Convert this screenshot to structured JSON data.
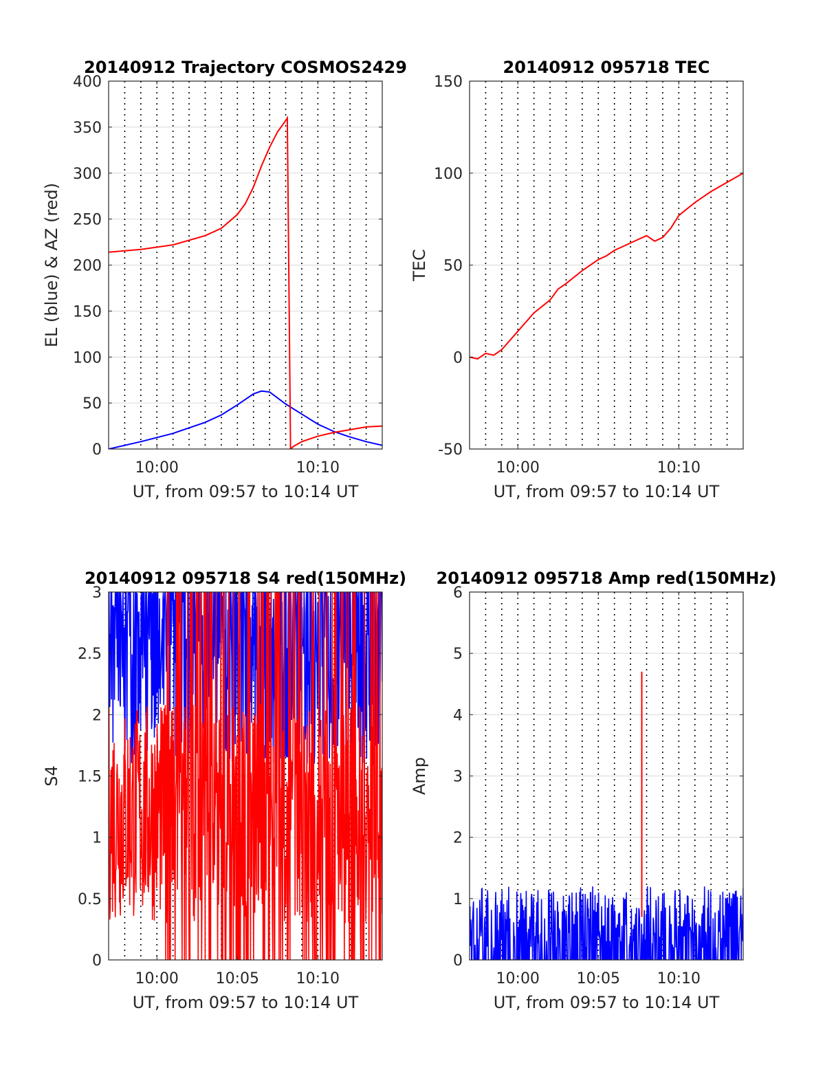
{
  "colors": {
    "el": "#0000ff",
    "az": "#ff0000",
    "s4": "#ff0000",
    "amp_red": "#ff0000",
    "amp_blue": "#0000ff",
    "grid": "#d9d9d9",
    "vgrid": "#000000"
  },
  "chart_data": [
    {
      "type": "line",
      "title": "20140912 Trajectory COSMOS2429",
      "xlabel": "UT, from 09:57 to 10:14 UT",
      "ylabel": "EL (blue) & AZ (red)",
      "xlim_min": [
        0,
        17
      ],
      "ylim": [
        0,
        400
      ],
      "xticks": [
        {
          "v": 3,
          "label": "10:00"
        },
        {
          "v": 13,
          "label": "10:10"
        }
      ],
      "yticks": [
        0,
        50,
        100,
        150,
        200,
        250,
        300,
        350,
        400
      ],
      "grid": true,
      "series": [
        {
          "key": "el",
          "x": [
            0,
            2,
            4,
            6,
            7,
            8,
            9,
            9.5,
            10,
            11,
            12,
            13,
            14,
            15,
            16,
            17
          ],
          "y": [
            0,
            8,
            17,
            29,
            37,
            48,
            60,
            63,
            62,
            49,
            38,
            27,
            19,
            13,
            8,
            4
          ]
        },
        {
          "key": "az",
          "x": [
            0,
            2,
            4,
            6,
            7,
            8,
            8.5,
            9,
            9.5,
            10,
            10.5,
            11,
            11.1,
            11.3,
            11.5,
            12,
            13,
            14,
            15,
            16,
            17
          ],
          "y": [
            214,
            217,
            222,
            232,
            240,
            255,
            267,
            285,
            308,
            328,
            345,
            357,
            360,
            0,
            3,
            8,
            14,
            18,
            21,
            24,
            25
          ]
        }
      ]
    },
    {
      "type": "line",
      "title": "20140912 095718 TEC",
      "xlabel": "UT, from 09:57 to 10:14 UT",
      "ylabel": "TEC",
      "xlim_min": [
        0,
        17
      ],
      "ylim": [
        -50,
        150
      ],
      "xticks": [
        {
          "v": 3,
          "label": "10:00"
        },
        {
          "v": 13,
          "label": "10:10"
        }
      ],
      "yticks": [
        -50,
        0,
        50,
        100,
        150
      ],
      "grid": true,
      "series": [
        {
          "key": "s4",
          "x": [
            0,
            0.5,
            1,
            1.5,
            2,
            3,
            4,
            5,
            5.5,
            6,
            7,
            8,
            8.5,
            9,
            10,
            11,
            11.5,
            12,
            12.5,
            13,
            14,
            15,
            16,
            17
          ],
          "y": [
            0,
            -1,
            2,
            1,
            4,
            14,
            24,
            31,
            37,
            40,
            47,
            53,
            55,
            58,
            62,
            66,
            63,
            65,
            70,
            77,
            84,
            90,
            95,
            100
          ]
        }
      ]
    },
    {
      "type": "line",
      "title": "20140912 095718 S4 red(150MHz)",
      "xlabel": "UT, from 09:57 to 10:14 UT",
      "ylabel": "S4",
      "xlim_min": [
        0,
        17
      ],
      "ylim": [
        0,
        3
      ],
      "xticks": [
        {
          "v": 3,
          "label": "10:00"
        },
        {
          "v": 8,
          "label": "10:05"
        },
        {
          "v": 13,
          "label": "10:10"
        }
      ],
      "yticks": [
        0,
        0.5,
        1,
        1.5,
        2,
        2.5,
        3
      ],
      "grid": true,
      "series": [
        {
          "key": "amp_blue",
          "x_range": [
            0,
            17
          ],
          "noisy": true,
          "base": 2.3,
          "spread": 0.7
        },
        {
          "key": "amp_red",
          "x_range": [
            0,
            17
          ],
          "noisy": true,
          "base": 1.2,
          "spread": 0.9
        }
      ]
    },
    {
      "type": "line",
      "title": "20140912 095718 Amp red(150MHz)",
      "xlabel": "UT, from 09:57 to 10:14 UT",
      "ylabel": "Amp",
      "xlim_min": [
        0,
        17
      ],
      "ylim": [
        0,
        6
      ],
      "xticks": [
        {
          "v": 3,
          "label": "10:00"
        },
        {
          "v": 8,
          "label": "10:05"
        },
        {
          "v": 13,
          "label": "10:10"
        }
      ],
      "yticks": [
        0,
        1,
        2,
        3,
        4,
        5,
        6
      ],
      "grid": true,
      "series": [
        {
          "key": "amp_blue",
          "x_range": [
            0,
            17
          ],
          "noisy": true,
          "base": 0.7,
          "spread": 0.5
        },
        {
          "key": "amp_red",
          "spike_x": 10.7,
          "spike_y": 4.7,
          "base": 0.7
        }
      ]
    }
  ]
}
